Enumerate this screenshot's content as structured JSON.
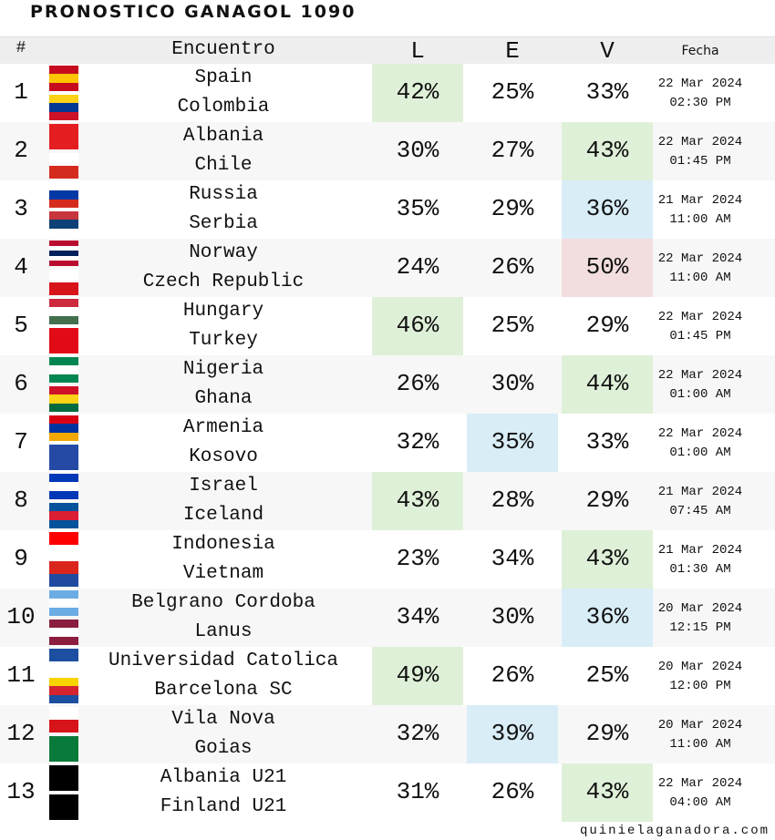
{
  "header": {
    "title": "PRONOSTICO GANAGOL 1090"
  },
  "columns": {
    "number": "#",
    "match": "Encuentro",
    "L": "L",
    "E": "E",
    "V": "V",
    "date": "Fecha"
  },
  "rows": [
    {
      "number": 1,
      "home": "Spain",
      "away": "Colombia",
      "L": "42%",
      "E": "25%",
      "V": "33%",
      "date": "22 Mar 2024",
      "time": "02:30 PM",
      "highlight": "L",
      "highlight_color": "#dff0d8"
    },
    {
      "number": 2,
      "home": "Albania",
      "away": "Chile",
      "L": "30%",
      "E": "27%",
      "V": "43%",
      "date": "22 Mar 2024",
      "time": "01:45 PM",
      "highlight": "V",
      "highlight_color": "#dff0d8"
    },
    {
      "number": 3,
      "home": "Russia",
      "away": "Serbia",
      "L": "35%",
      "E": "29%",
      "V": "36%",
      "date": "21 Mar 2024",
      "time": "11:00 AM",
      "highlight": "V",
      "highlight_color": "#d9edf7"
    },
    {
      "number": 4,
      "home": "Norway",
      "away": "Czech Republic",
      "L": "24%",
      "E": "26%",
      "V": "50%",
      "date": "22 Mar 2024",
      "time": "11:00 AM",
      "highlight": "V",
      "highlight_color": "#f2dede"
    },
    {
      "number": 5,
      "home": "Hungary",
      "away": "Turkey",
      "L": "46%",
      "E": "25%",
      "V": "29%",
      "date": "22 Mar 2024",
      "time": "01:45 PM",
      "highlight": "L",
      "highlight_color": "#dff0d8"
    },
    {
      "number": 6,
      "home": "Nigeria",
      "away": "Ghana",
      "L": "26%",
      "E": "30%",
      "V": "44%",
      "date": "22 Mar 2024",
      "time": "01:00 AM",
      "highlight": "V",
      "highlight_color": "#dff0d8"
    },
    {
      "number": 7,
      "home": "Armenia",
      "away": "Kosovo",
      "L": "32%",
      "E": "35%",
      "V": "33%",
      "date": "22 Mar 2024",
      "time": "01:00 AM",
      "highlight": "E",
      "highlight_color": "#d9edf7"
    },
    {
      "number": 8,
      "home": "Israel",
      "away": "Iceland",
      "L": "43%",
      "E": "28%",
      "V": "29%",
      "date": "21 Mar 2024",
      "time": "07:45 AM",
      "highlight": "L",
      "highlight_color": "#dff0d8"
    },
    {
      "number": 9,
      "home": "Indonesia",
      "away": "Vietnam",
      "L": "23%",
      "E": "34%",
      "V": "43%",
      "date": "21 Mar 2024",
      "time": "01:30 AM",
      "highlight": "V",
      "highlight_color": "#dff0d8"
    },
    {
      "number": 10,
      "home": "Belgrano Cordoba",
      "away": "Lanus",
      "L": "34%",
      "E": "30%",
      "V": "36%",
      "date": "20 Mar 2024",
      "time": "12:15 PM",
      "highlight": "V",
      "highlight_color": "#d9edf7"
    },
    {
      "number": 11,
      "home": "Universidad Catolica",
      "away": "Barcelona SC",
      "L": "49%",
      "E": "26%",
      "V": "25%",
      "date": "20 Mar 2024",
      "time": "12:00 PM",
      "highlight": "L",
      "highlight_color": "#dff0d8"
    },
    {
      "number": 12,
      "home": "Vila Nova",
      "away": "Goias",
      "L": "32%",
      "E": "39%",
      "V": "29%",
      "date": "20 Mar 2024",
      "time": "11:00 AM",
      "highlight": "E",
      "highlight_color": "#d9edf7"
    },
    {
      "number": 13,
      "home": "Albania U21",
      "away": "Finland U21",
      "L": "31%",
      "E": "26%",
      "V": "43%",
      "date": "22 Mar 2024",
      "time": "04:00 AM",
      "highlight": "V",
      "highlight_color": "#dff0d8"
    }
  ],
  "footer": {
    "site": "quinielaganadora.com"
  }
}
